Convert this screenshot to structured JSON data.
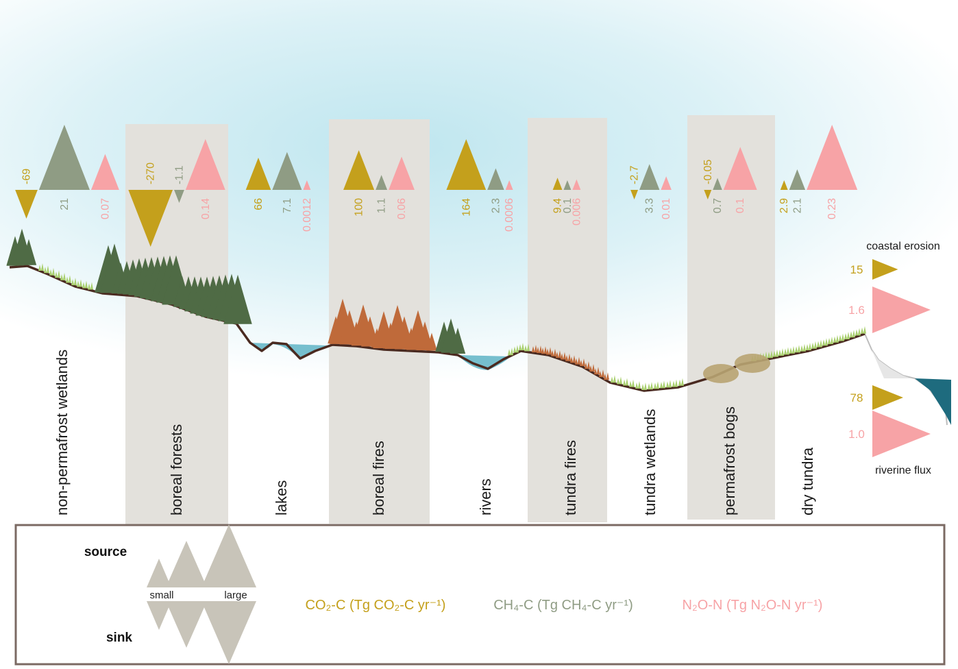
{
  "colors": {
    "co2": "#c4a01c",
    "ch4": "#8f9c84",
    "n2o": "#f7a3a6",
    "band": "#e3e1dc",
    "ground": "#4a2a20",
    "water": "#5fb4c6",
    "sea": "#1e6b7e",
    "sky": "#bfe6ef",
    "conifer": "#4f6b45",
    "burnt": "#bf6a3a",
    "grass": "#a9cf6e",
    "legend_border": "#7b6a63",
    "legend_shape": "#c8c4b9"
  },
  "max_abs_flux": {
    "co2": 270,
    "ch4": 21,
    "n2o": 0.23
  },
  "ecosystems": [
    {
      "label": "non-permafrost wetlands",
      "shaded": false,
      "fluxes": [
        {
          "gas": "co2",
          "value": -69,
          "text": "-69"
        },
        {
          "gas": "ch4",
          "value": 21,
          "text": "21"
        },
        {
          "gas": "n2o",
          "value": 0.07,
          "text": "0.07"
        }
      ]
    },
    {
      "label": "boreal forests",
      "shaded": true,
      "fluxes": [
        {
          "gas": "co2",
          "value": -270,
          "text": "-270"
        },
        {
          "gas": "ch4",
          "value": -1.1,
          "text": "-1.1"
        },
        {
          "gas": "n2o",
          "value": 0.14,
          "text": "0.14"
        }
      ]
    },
    {
      "label": "lakes",
      "shaded": false,
      "fluxes": [
        {
          "gas": "co2",
          "value": 66,
          "text": "66"
        },
        {
          "gas": "ch4",
          "value": 7.1,
          "text": "7.1"
        },
        {
          "gas": "n2o",
          "value": 0.0012,
          "text": "0.0012"
        }
      ]
    },
    {
      "label": "boreal fires",
      "shaded": true,
      "fluxes": [
        {
          "gas": "co2",
          "value": 100,
          "text": "100"
        },
        {
          "gas": "ch4",
          "value": 1.1,
          "text": "1.1"
        },
        {
          "gas": "n2o",
          "value": 0.06,
          "text": "0.06"
        }
      ]
    },
    {
      "label": "rivers",
      "shaded": false,
      "fluxes": [
        {
          "gas": "co2",
          "value": 164,
          "text": "164"
        },
        {
          "gas": "ch4",
          "value": 2.3,
          "text": "2.3"
        },
        {
          "gas": "n2o",
          "value": 0.0006,
          "text": "0.0006"
        }
      ]
    },
    {
      "label": "tundra fires",
      "shaded": true,
      "fluxes": [
        {
          "gas": "co2",
          "value": 9.4,
          "text": "9.4"
        },
        {
          "gas": "ch4",
          "value": 0.1,
          "text": "0.1"
        },
        {
          "gas": "n2o",
          "value": 0.006,
          "text": "0.006"
        }
      ]
    },
    {
      "label": "tundra wetlands",
      "shaded": false,
      "fluxes": [
        {
          "gas": "co2",
          "value": -2.7,
          "text": "-2.7"
        },
        {
          "gas": "ch4",
          "value": 3.3,
          "text": "3.3"
        },
        {
          "gas": "n2o",
          "value": 0.01,
          "text": "0.01"
        }
      ]
    },
    {
      "label": "permafrost bogs",
      "shaded": true,
      "fluxes": [
        {
          "gas": "co2",
          "value": -0.05,
          "text": "-0.05"
        },
        {
          "gas": "ch4",
          "value": 0.7,
          "text": "0.7"
        },
        {
          "gas": "n2o",
          "value": 0.1,
          "text": "0.1"
        }
      ]
    },
    {
      "label": "dry tundra",
      "shaded": false,
      "fluxes": [
        {
          "gas": "co2",
          "value": 2.9,
          "text": "2.9"
        },
        {
          "gas": "ch4",
          "value": 2.1,
          "text": "2.1"
        },
        {
          "gas": "n2o",
          "value": 0.23,
          "text": "0.23"
        }
      ]
    }
  ],
  "lateral": [
    {
      "title": "coastal erosion",
      "fluxes": [
        {
          "gas": "co2",
          "value": 15,
          "text": "15"
        },
        {
          "gas": "n2o",
          "value": 1.6,
          "text": "1.6"
        }
      ]
    },
    {
      "title": "riverine flux",
      "fluxes": [
        {
          "gas": "co2",
          "value": 78,
          "text": "78"
        },
        {
          "gas": "n2o",
          "value": 1.0,
          "text": "1.0"
        }
      ]
    }
  ],
  "legend": {
    "source_label": "source",
    "sink_label": "sink",
    "small_label": "small",
    "large_label": "large",
    "co2_label": "CO₂-C (Tg CO₂-C yr⁻¹)",
    "ch4_label": "CH₄-C (Tg CH₄-C yr⁻¹)",
    "n2o_label": "N₂O-N (Tg N₂O-N yr⁻¹)"
  }
}
